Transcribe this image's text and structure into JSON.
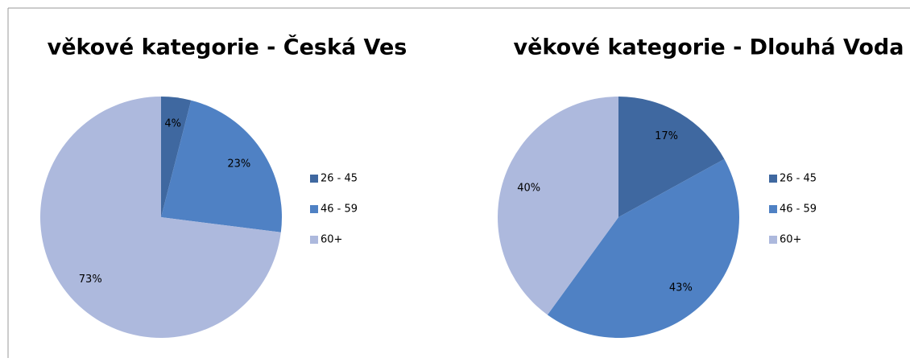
{
  "chart_data": [
    {
      "type": "pie",
      "title": "věkové kategorie - Česká Ves",
      "categories": [
        "26 - 45",
        "46 - 59",
        "60+"
      ],
      "values": [
        4,
        23,
        73
      ],
      "value_labels": [
        "4%",
        "23%",
        "73%"
      ],
      "colors": [
        "#3f68a0",
        "#4f81c4",
        "#adb9dd"
      ],
      "legend": "right"
    },
    {
      "type": "pie",
      "title": "věkové kategorie - Dlouhá Voda",
      "categories": [
        "26 - 45",
        "46 - 59",
        "60+"
      ],
      "values": [
        17,
        43,
        40
      ],
      "value_labels": [
        "17%",
        "43%",
        "40%"
      ],
      "colors": [
        "#3f68a0",
        "#4f81c4",
        "#adb9dd"
      ],
      "legend": "right"
    }
  ]
}
